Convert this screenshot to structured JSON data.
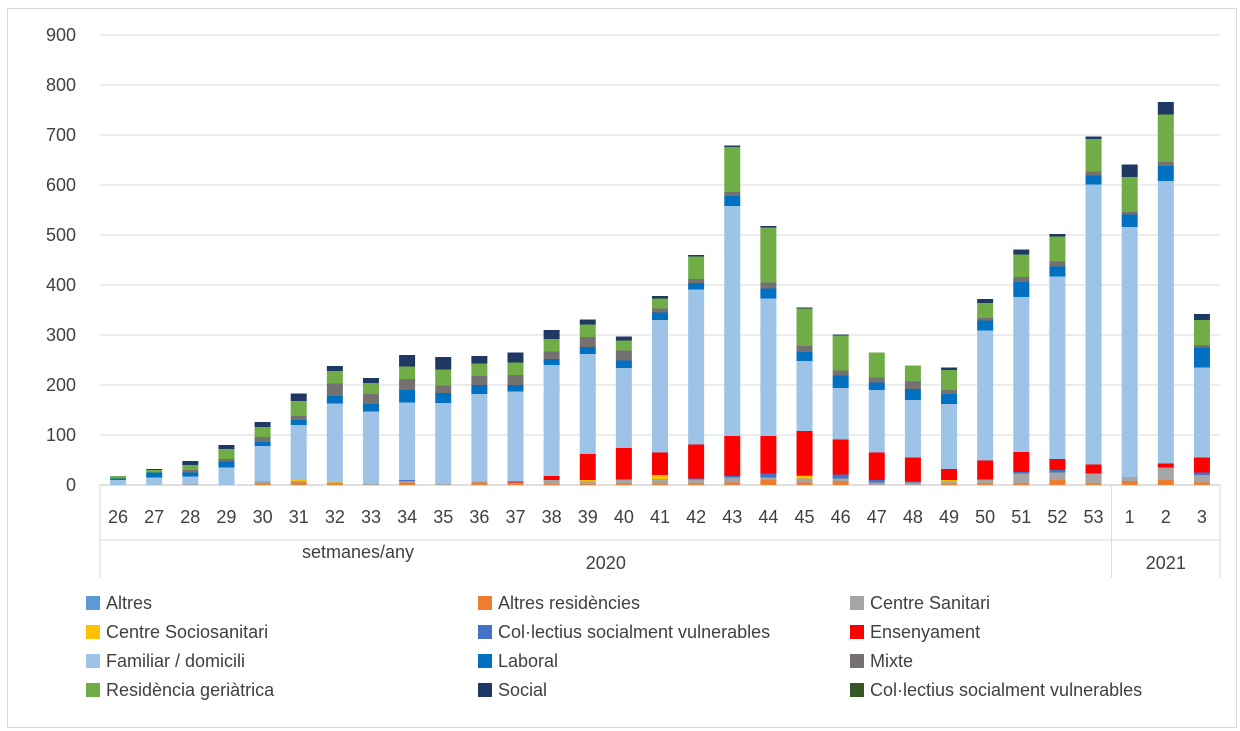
{
  "chart_data": {
    "type": "bar",
    "stacked": true,
    "xlabel": "setmanes/any",
    "ylim": [
      0,
      900
    ],
    "yticks": [
      0,
      100,
      200,
      300,
      400,
      500,
      600,
      700,
      800,
      900
    ],
    "grid": true,
    "legend_position": "bottom",
    "categories": [
      "26",
      "27",
      "28",
      "29",
      "30",
      "31",
      "32",
      "33",
      "34",
      "35",
      "36",
      "37",
      "38",
      "39",
      "40",
      "41",
      "42",
      "43",
      "44",
      "45",
      "46",
      "47",
      "48",
      "49",
      "50",
      "51",
      "52",
      "53",
      "1",
      "2",
      "3"
    ],
    "year_groups": [
      {
        "label": "2020",
        "count": 28
      },
      {
        "label": "2021",
        "count": 3
      }
    ],
    "series": [
      {
        "name": "Altres",
        "color": "#5b9bd5",
        "values": [
          0,
          0,
          0,
          0,
          0,
          0,
          0,
          0,
          0,
          0,
          0,
          0,
          0,
          0,
          0,
          0,
          0,
          0,
          0,
          0,
          0,
          0,
          0,
          0,
          0,
          0,
          0,
          0,
          0,
          0,
          0
        ]
      },
      {
        "name": "Altres residències",
        "color": "#ed7d31",
        "values": [
          0,
          0,
          0,
          0,
          3,
          5,
          3,
          0,
          5,
          0,
          5,
          3,
          2,
          2,
          3,
          2,
          3,
          5,
          10,
          5,
          8,
          0,
          0,
          2,
          3,
          3,
          10,
          3,
          8,
          10,
          5
        ]
      },
      {
        "name": "Centre Sanitari",
        "color": "#a5a5a5",
        "values": [
          0,
          0,
          2,
          0,
          5,
          3,
          2,
          2,
          3,
          2,
          2,
          2,
          8,
          5,
          8,
          10,
          8,
          10,
          5,
          8,
          5,
          5,
          5,
          5,
          8,
          20,
          15,
          20,
          8,
          25,
          15
        ]
      },
      {
        "name": "Centre Sociosanitari",
        "color": "#ffc000",
        "values": [
          0,
          0,
          0,
          0,
          0,
          2,
          3,
          0,
          0,
          0,
          0,
          0,
          0,
          3,
          0,
          8,
          0,
          0,
          0,
          5,
          0,
          0,
          0,
          3,
          0,
          0,
          0,
          0,
          0,
          0,
          0
        ]
      },
      {
        "name": "Col·lectius socialment vulnerables",
        "color": "#4472c4",
        "values": [
          0,
          0,
          0,
          0,
          0,
          0,
          0,
          0,
          2,
          0,
          0,
          0,
          0,
          0,
          0,
          0,
          2,
          3,
          8,
          2,
          8,
          5,
          2,
          0,
          0,
          3,
          5,
          0,
          0,
          0,
          5
        ]
      },
      {
        "name": "Ensenyament",
        "color": "#ff0000",
        "values": [
          0,
          0,
          0,
          0,
          0,
          0,
          0,
          0,
          0,
          0,
          0,
          2,
          8,
          52,
          63,
          45,
          68,
          80,
          75,
          88,
          70,
          55,
          48,
          22,
          38,
          40,
          22,
          18,
          0,
          8,
          30
        ]
      },
      {
        "name": "Familiar / domicili",
        "color": "#9dc3e6",
        "values": [
          10,
          15,
          15,
          35,
          70,
          110,
          155,
          145,
          155,
          162,
          175,
          180,
          222,
          200,
          160,
          265,
          310,
          460,
          275,
          140,
          103,
          125,
          115,
          130,
          260,
          310,
          365,
          560,
          500,
          565,
          180
        ]
      },
      {
        "name": "Laboral",
        "color": "#0070c0",
        "values": [
          3,
          10,
          8,
          12,
          8,
          10,
          15,
          15,
          25,
          20,
          18,
          13,
          12,
          14,
          15,
          15,
          13,
          20,
          20,
          18,
          25,
          15,
          22,
          20,
          20,
          30,
          20,
          18,
          25,
          30,
          40
        ]
      },
      {
        "name": "Mixte",
        "color": "#767171",
        "values": [
          0,
          0,
          5,
          5,
          10,
          8,
          25,
          20,
          22,
          15,
          18,
          20,
          15,
          20,
          20,
          8,
          8,
          8,
          12,
          12,
          10,
          10,
          15,
          8,
          5,
          10,
          10,
          8,
          5,
          8,
          5
        ]
      },
      {
        "name": "Residència geriàtrica",
        "color": "#70ad47",
        "values": [
          5,
          5,
          10,
          20,
          20,
          30,
          25,
          22,
          25,
          32,
          25,
          25,
          25,
          25,
          20,
          20,
          45,
          90,
          110,
          75,
          70,
          50,
          32,
          40,
          30,
          45,
          50,
          65,
          70,
          95,
          50
        ]
      },
      {
        "name": "Social",
        "color": "#203864",
        "values": [
          0,
          2,
          8,
          8,
          10,
          15,
          10,
          10,
          23,
          25,
          15,
          20,
          18,
          10,
          8,
          5,
          3,
          3,
          3,
          2,
          2,
          0,
          0,
          5,
          8,
          10,
          5,
          5,
          25,
          25,
          12
        ]
      },
      {
        "name": "Col·lectius socialment vulnerables",
        "color": "#375623",
        "values": [
          0,
          0,
          0,
          0,
          0,
          0,
          0,
          0,
          0,
          0,
          0,
          0,
          0,
          0,
          0,
          0,
          0,
          0,
          0,
          0,
          0,
          0,
          0,
          0,
          0,
          0,
          0,
          0,
          0,
          0,
          0
        ]
      }
    ]
  }
}
